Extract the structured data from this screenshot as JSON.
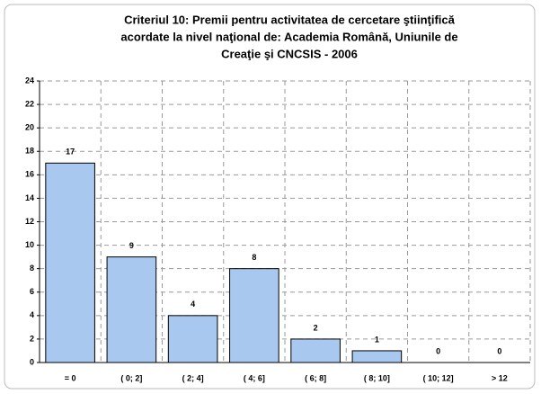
{
  "chart_data": {
    "type": "bar",
    "title": [
      "Criteriul 10: Premii pentru activitatea de cercetare ştiinţifică",
      "acordate la nivel naţional de: Academia Română, Uniunile de",
      "Creaţie şi CNCSIS - 2006"
    ],
    "categories": [
      "= 0",
      "( 0; 2]",
      "( 2; 4]",
      "( 4; 6]",
      "( 6; 8]",
      "( 8; 10]",
      "( 10; 12]",
      "> 12"
    ],
    "values": [
      17,
      9,
      4,
      8,
      2,
      1,
      0,
      0
    ],
    "color": "#a8c8f0",
    "ylim": [
      0,
      24
    ],
    "yticks": [
      0,
      2,
      4,
      6,
      8,
      10,
      12,
      14,
      16,
      18,
      20,
      22,
      24
    ],
    "grid": true
  }
}
